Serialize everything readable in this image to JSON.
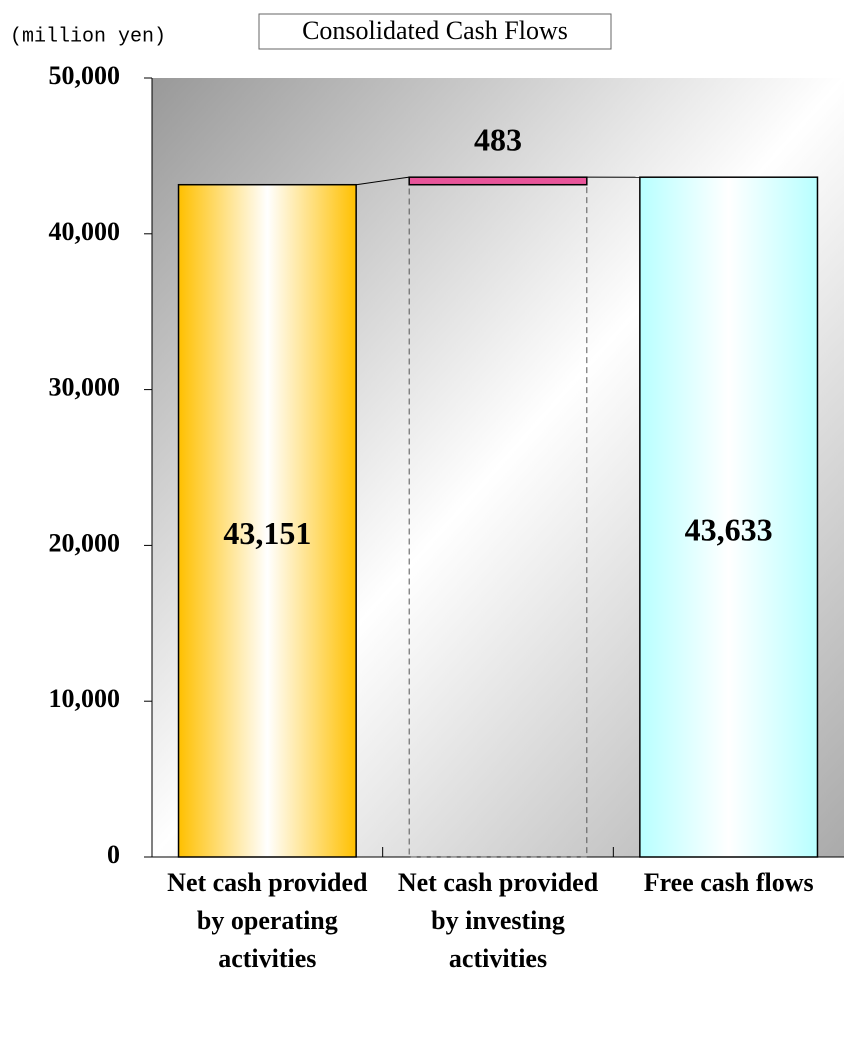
{
  "chart_data": {
    "type": "waterfall",
    "title": "Consolidated Cash Flows",
    "y_label": "(million yen)",
    "categories": [
      "Net cash provided by operating activities",
      "Net cash provided by investing activities",
      "Free cash flows"
    ],
    "measures": [
      "absolute",
      "relative",
      "total"
    ],
    "values": [
      43151,
      483,
      43633
    ],
    "value_labels": [
      "43,151",
      "483",
      "43,633"
    ],
    "colors": [
      "#ffc000",
      "#e8559a",
      "#b8ffff"
    ],
    "ylim": [
      0,
      50000
    ],
    "yticks": [
      0,
      {
        "value": 10000,
        "label": "10,000"
      },
      {
        "value": 20000,
        "label": "20,000"
      },
      {
        "value": 30000,
        "label": "30,000"
      },
      {
        "value": 40000,
        "label": "40,000"
      },
      {
        "value": 50000,
        "label": "50,000"
      }
    ]
  }
}
